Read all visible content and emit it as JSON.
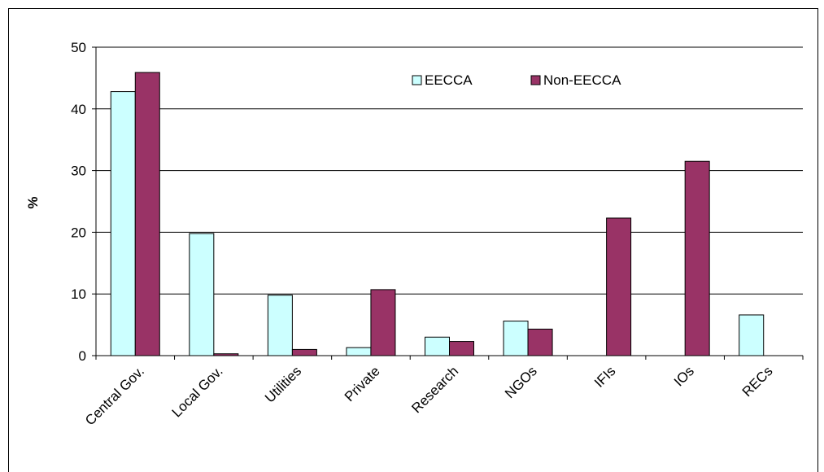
{
  "chart_data": {
    "type": "bar",
    "title": "",
    "xlabel": "",
    "ylabel": "%",
    "ylim": [
      0,
      50
    ],
    "yticks": [
      0,
      10,
      20,
      30,
      40,
      50
    ],
    "grid": true,
    "legend_position": "top-right",
    "categories": [
      "Central Gov.",
      "Local Gov.",
      "Utilities",
      "Private",
      "Research",
      "NGOs",
      "IFIs",
      "IOs",
      "RECs"
    ],
    "series": [
      {
        "name": "EECCA",
        "color": "#CCFFFF",
        "values": [
          42.8,
          19.8,
          9.8,
          1.3,
          3.0,
          5.6,
          0,
          0,
          6.6
        ]
      },
      {
        "name": "Non-EECCA",
        "color": "#993366",
        "values": [
          45.9,
          0.3,
          1.0,
          10.7,
          2.3,
          4.3,
          22.3,
          31.5,
          0
        ]
      }
    ]
  }
}
